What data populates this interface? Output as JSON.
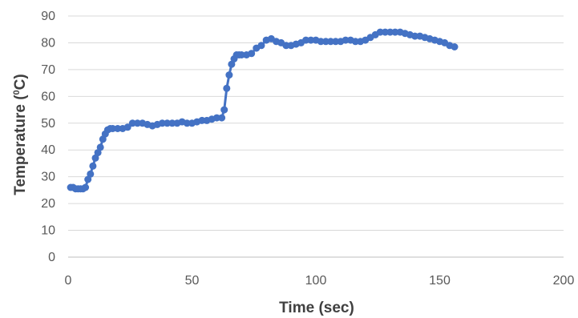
{
  "chart_data": {
    "type": "scatter",
    "title": "",
    "xlabel": "Time (sec)",
    "ylabel": {
      "prefix": "Temperature (",
      "superscript": "0",
      "suffix": "C)"
    },
    "xlim": [
      0,
      200
    ],
    "ylim": [
      0,
      90
    ],
    "x_ticks": [
      0,
      50,
      100,
      150,
      200
    ],
    "y_ticks": [
      0,
      10,
      20,
      30,
      40,
      50,
      60,
      70,
      80,
      90
    ],
    "grid": "horizontal",
    "legend": "none",
    "series": [
      {
        "color": "#4472c4",
        "x": [
          1,
          2,
          3,
          4,
          5,
          6,
          7,
          8,
          9,
          10,
          11,
          12,
          13,
          14,
          15,
          16,
          17,
          18,
          20,
          22,
          24,
          26,
          28,
          30,
          32,
          34,
          36,
          38,
          40,
          42,
          44,
          46,
          48,
          50,
          52,
          54,
          56,
          58,
          60,
          62,
          63,
          64,
          65,
          66,
          67,
          68,
          69,
          70,
          72,
          74,
          76,
          78,
          80,
          82,
          84,
          86,
          88,
          90,
          92,
          94,
          96,
          98,
          100,
          102,
          104,
          106,
          108,
          110,
          112,
          114,
          116,
          118,
          120,
          122,
          124,
          126,
          128,
          130,
          132,
          134,
          136,
          138,
          140,
          142,
          144,
          146,
          148,
          150,
          152,
          154,
          156
        ],
        "y": [
          26,
          26,
          25.5,
          25.5,
          25.5,
          25.5,
          26,
          29,
          31,
          34,
          37,
          39,
          41,
          44,
          46,
          47.5,
          48,
          48,
          48,
          48,
          48.5,
          50,
          50,
          50,
          49.5,
          49,
          49.5,
          50,
          50,
          50,
          50,
          50.5,
          50,
          50,
          50.5,
          51,
          51,
          51.5,
          52,
          52,
          55,
          63,
          68,
          72,
          74,
          75.5,
          75.5,
          75.5,
          75.5,
          76,
          78,
          79,
          81,
          81.5,
          80.5,
          80,
          79,
          79,
          79.5,
          80,
          81,
          81,
          81,
          80.5,
          80.5,
          80.5,
          80.5,
          80.5,
          81,
          81,
          80.5,
          80.5,
          81,
          82,
          83,
          84,
          84,
          84,
          84,
          84,
          83.5,
          83,
          82.5,
          82.5,
          82,
          81.5,
          81,
          80.5,
          80,
          79,
          78.5
        ]
      }
    ]
  }
}
